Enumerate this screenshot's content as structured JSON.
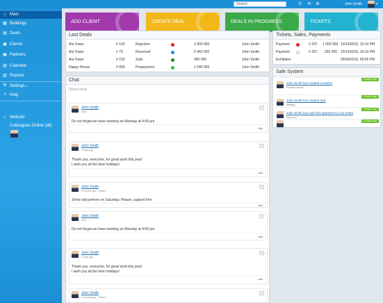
{
  "topbar": {
    "search_placeholder": "Search",
    "user_name": "John Smith",
    "icons": [
      "phone-icon",
      "mail-icon",
      "settings-icon"
    ]
  },
  "sidebar": {
    "items": [
      {
        "label": "Main",
        "icon": "home-icon"
      },
      {
        "label": "Buildings",
        "icon": "building-icon"
      },
      {
        "label": "Deals",
        "icon": "deals-icon"
      },
      {
        "label": "Clients",
        "icon": "clients-icon"
      },
      {
        "label": "Partners",
        "icon": "partners-icon"
      },
      {
        "label": "Calendar",
        "icon": "calendar-icon"
      },
      {
        "label": "Reports",
        "icon": "reports-icon"
      },
      {
        "label": "Settings",
        "icon": "settings-icon"
      },
      {
        "label": "Help",
        "icon": "help-icon"
      },
      {
        "label": "Website",
        "icon": "website-icon"
      }
    ],
    "colleagues_label": "Colleagues Online (all)"
  },
  "tiles": [
    {
      "label": "ADD CLIENT",
      "color": "#a23aae"
    },
    {
      "label": "CREATE DEAL",
      "color": "#f2b81a"
    },
    {
      "label": "DEALS IN PROGRESS",
      "color": "#3aa94a"
    },
    {
      "label": "TICKETS",
      "color": "#23b3d0"
    }
  ],
  "last_deals": {
    "title": "Last Deals",
    "rows": [
      {
        "building": "Ala Tower",
        "number": "# 100",
        "status": "Rejection",
        "color": "#e02020",
        "amount": "2 900 000",
        "client": "John Smith"
      },
      {
        "building": "Ala Tower",
        "number": "# 75",
        "status": "Reserved",
        "color": "#1e90e0",
        "amount": "5 465 000",
        "client": "John Smith"
      },
      {
        "building": "Ala Tower",
        "number": "# 150",
        "status": "Sold",
        "color": "#1c8a2a",
        "amount": "900 000",
        "client": "John Smith"
      },
      {
        "building": "Happy House",
        "number": "# 450",
        "status": "Prepayment",
        "color": "#3ab84a",
        "amount": "1 540 000",
        "client": "John Smith"
      }
    ]
  },
  "tsp": {
    "title": "Tickets, Sales, Payments",
    "rows": [
      {
        "type": "Payment",
        "color": "#e02020",
        "number": "# 297",
        "amount": "1 000 000",
        "date": "10/14/2016, 10:14 PM"
      },
      {
        "type": "Payment",
        "color": "#ffffff",
        "number": "# 357",
        "amount": "255 000",
        "date": "10/14/2016, 10:14 PM"
      },
      {
        "type": "Exhibition",
        "color": "",
        "number": "",
        "amount": "",
        "date": "09/04/2016, 09:05 PM"
      }
    ]
  },
  "sale_system": {
    "title": "Sale System",
    "items": [
      {
        "badge": "1 month ago",
        "text": "John Smith has created occasion",
        "sub": "Prepare reports"
      },
      {
        "badge": "1 month ago",
        "text": "John Smith has created task",
        "sub": "Meeting"
      },
      {
        "badge": "1 month ago",
        "text": "John Smith has sold #14 apartment in Ala Tower",
        "sub": "Start now"
      },
      {
        "badge": "1 month ago",
        "text": "",
        "sub": ""
      }
    ]
  },
  "chat": {
    "title": "Chat",
    "share_placeholder": "Share news",
    "like_label": "Like",
    "posts": [
      {
        "name": "John Smith",
        "meta": "Now",
        "sub": "",
        "lines": [
          "Do not forget we have meeting on Monday at 4:00 pm"
        ]
      },
      {
        "name": "John Smith",
        "meta": "2 days ago",
        "sub": "",
        "lines": [
          "Thank you, everyone, for great work this year!",
          "I wish you all the best holidays!"
        ]
      },
      {
        "name": "John Smith",
        "meta": "5 months ago",
        "sub": "Edited",
        "lines": [
          "Johny will perform on Saturday. Please, support him"
        ]
      },
      {
        "name": "John Smith",
        "meta": "Now",
        "sub": "",
        "lines": [
          "Do not forget we have meeting on Monday at 4:00 pm"
        ]
      },
      {
        "name": "John Smith",
        "meta": "2 days ago",
        "sub": "",
        "lines": [
          "Thank you, everyone, for great work this year!",
          "I wish you all the best holidays!"
        ]
      },
      {
        "name": "John Smith",
        "meta": "5 months ago",
        "sub": "Edited",
        "lines": []
      }
    ]
  }
}
